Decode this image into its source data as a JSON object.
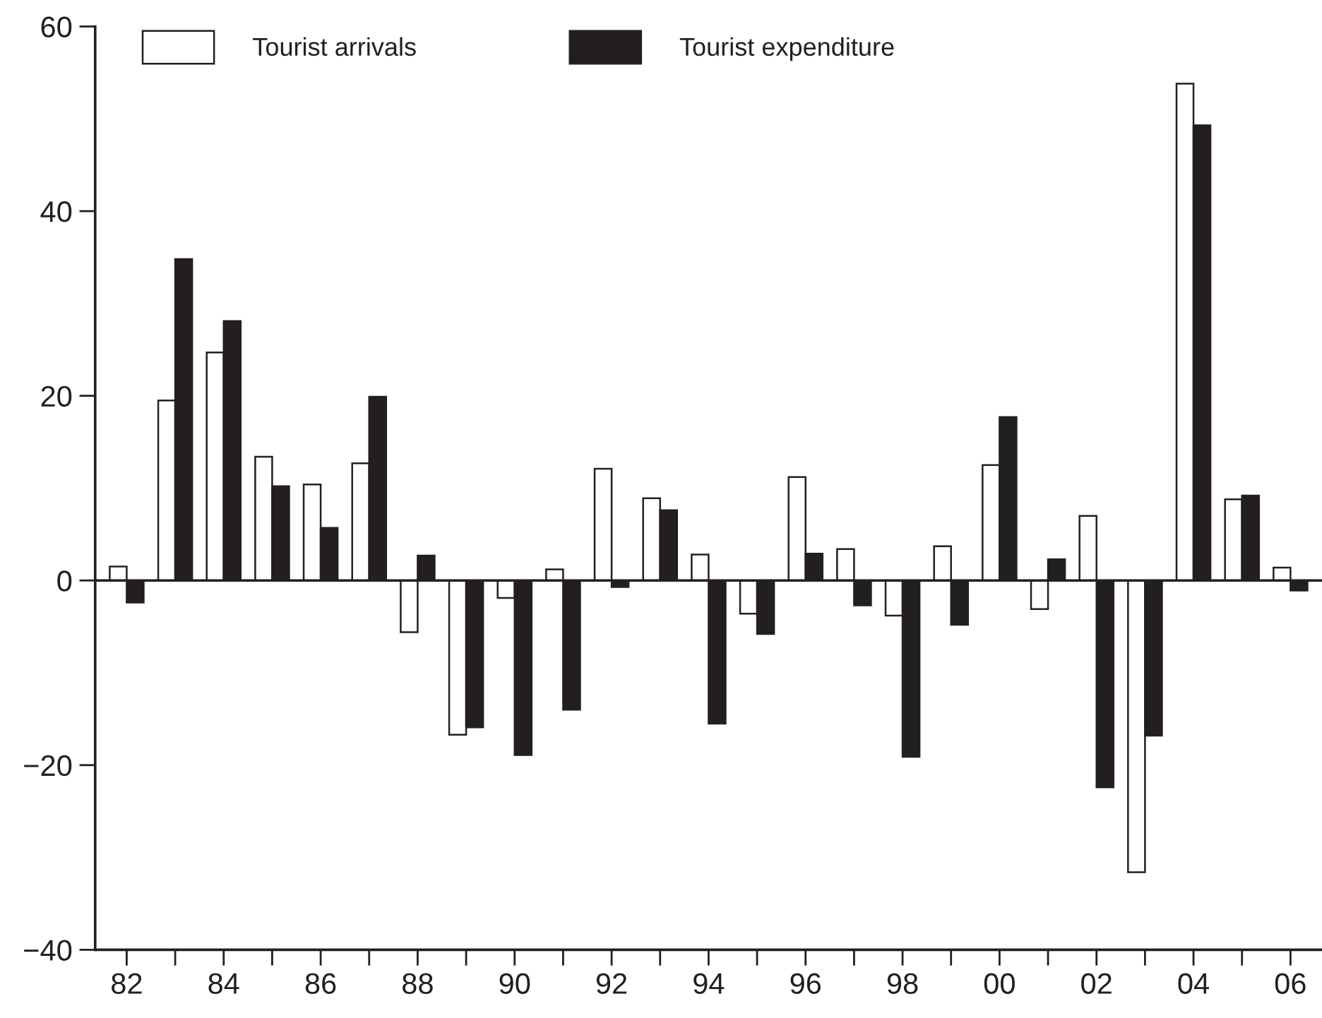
{
  "chart_data": {
    "type": "bar",
    "categories": [
      "82",
      null,
      "84",
      null,
      "86",
      null,
      "88",
      null,
      "90",
      null,
      "92",
      null,
      "94",
      null,
      "96",
      null,
      "98",
      null,
      "00",
      null,
      "02",
      null,
      "04",
      null,
      "06"
    ],
    "series": [
      {
        "name": "Tourist arrivals",
        "color": "#ffffff",
        "values": [
          1.5,
          19.5,
          24.7,
          13.4,
          10.4,
          12.7,
          -5.6,
          -16.7,
          -1.9,
          1.2,
          12.1,
          8.9,
          2.8,
          -3.6,
          11.2,
          3.4,
          -3.8,
          3.7,
          12.5,
          -3.1,
          7.0,
          -31.6,
          53.8,
          8.8,
          1.4
        ]
      },
      {
        "name": "Tourist expenditure",
        "color": "#231f20",
        "values": [
          -2.4,
          34.8,
          28.1,
          10.2,
          5.7,
          19.9,
          2.7,
          -15.9,
          -18.9,
          -14.0,
          -0.7,
          7.6,
          -15.5,
          -5.8,
          2.9,
          -2.7,
          -19.1,
          -4.8,
          17.7,
          2.3,
          -22.4,
          -16.8,
          49.3,
          9.2,
          -1.1
        ]
      }
    ],
    "ylim": [
      -40,
      60
    ],
    "yticks": [
      {
        "value": -40,
        "label": "−40"
      },
      {
        "value": -20,
        "label": "−20"
      },
      0,
      20,
      40,
      60
    ],
    "ref_lines": [
      {
        "axis": "y",
        "value": 0,
        "color": "#231f20"
      }
    ],
    "grid": false,
    "legend": "top left"
  }
}
